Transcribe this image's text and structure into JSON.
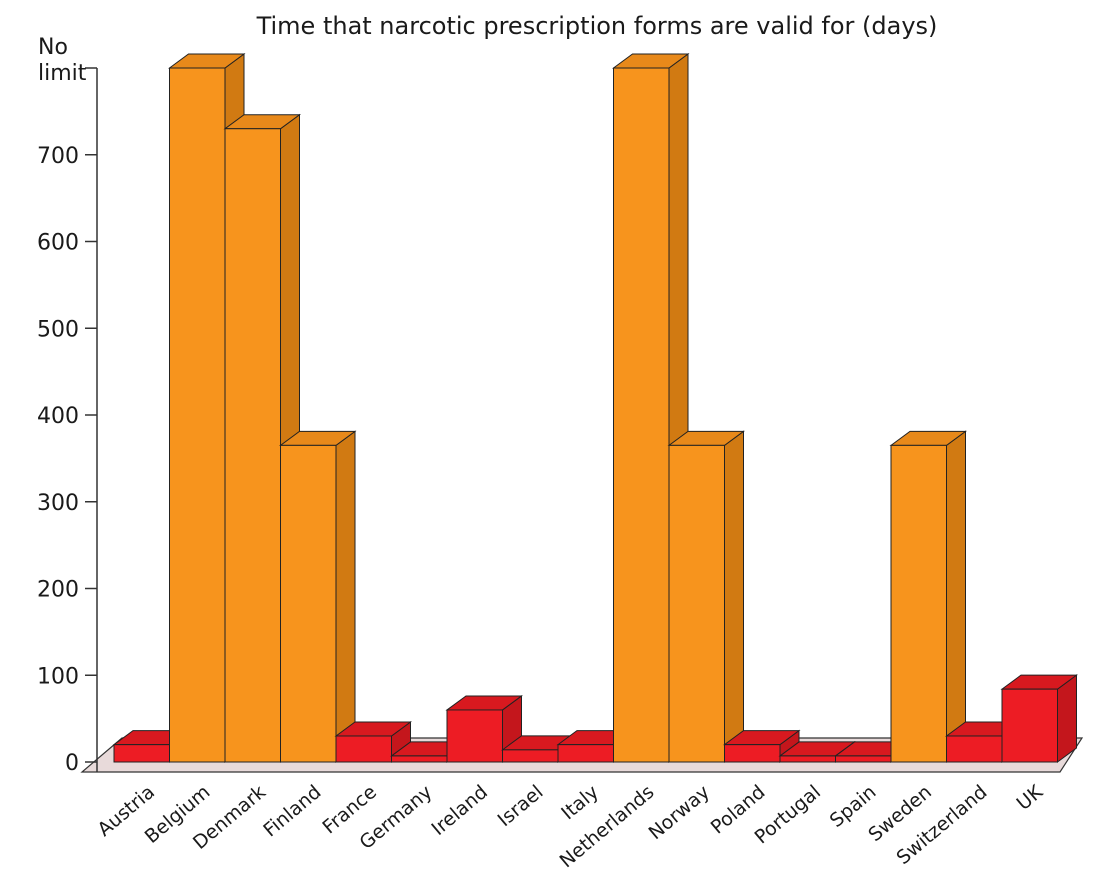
{
  "chart_data": {
    "type": "bar",
    "title": "Time that narcotic prescription forms are valid for (days)",
    "xlabel": "",
    "ylabel": "",
    "ylim": [
      0,
      800
    ],
    "yticks": [
      {
        "value": 0,
        "label": "0"
      },
      {
        "value": 100,
        "label": "100"
      },
      {
        "value": 200,
        "label": "200"
      },
      {
        "value": 300,
        "label": "300"
      },
      {
        "value": 400,
        "label": "400"
      },
      {
        "value": 500,
        "label": "500"
      },
      {
        "value": 600,
        "label": "600"
      },
      {
        "value": 700,
        "label": "700"
      },
      {
        "value": 800,
        "label_lines": [
          "No",
          "limit"
        ]
      }
    ],
    "categories": [
      "Austria",
      "Belgium",
      "Denmark",
      "Finland",
      "France",
      "Germany",
      "Ireland",
      "Israel",
      "Italy",
      "Netherlands",
      "Norway",
      "Poland",
      "Portugal",
      "Spain",
      "Sweden",
      "Switzerland",
      "UK"
    ],
    "values": [
      20,
      800,
      730,
      365,
      30,
      7,
      60,
      14,
      20,
      800,
      365,
      20,
      7,
      7,
      365,
      30,
      84
    ],
    "no_limit": [
      false,
      true,
      false,
      false,
      false,
      false,
      false,
      false,
      false,
      true,
      false,
      false,
      false,
      false,
      false,
      false,
      false
    ],
    "colors": {
      "long_front": "#F7941D",
      "long_side": "#D17A12",
      "long_top": "#E8891A",
      "short_front": "#ED1C24",
      "short_side": "#C4161C",
      "short_top": "#D8191F",
      "floor": "#E8DADA",
      "axis": "#333333"
    }
  }
}
